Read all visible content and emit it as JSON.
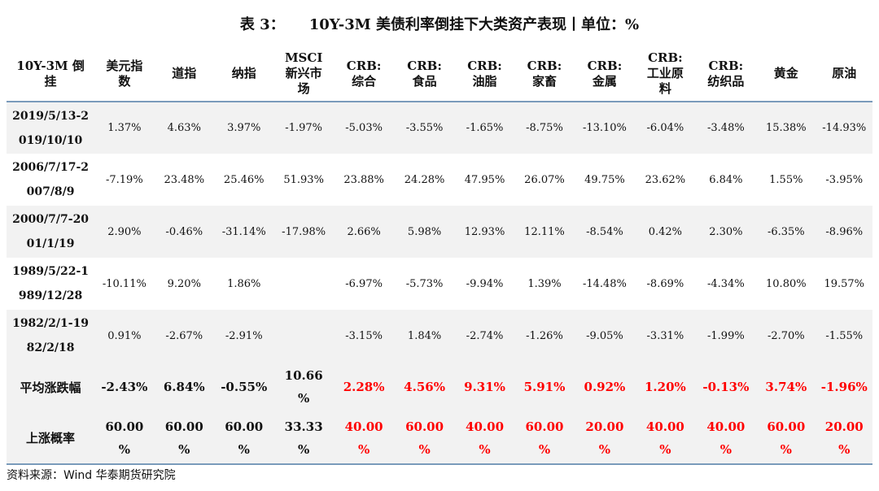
{
  "title": {
    "label": "表 3：",
    "text": "10Y-3M 美债利率倒挂下大类资产表现丨单位：%"
  },
  "headers": [
    [
      "10Y-3M 倒",
      "挂"
    ],
    [
      "美元指",
      "数"
    ],
    [
      "道指"
    ],
    [
      "纳指"
    ],
    [
      "MSCI",
      "新兴市",
      "场"
    ],
    [
      "CRB:",
      "综合"
    ],
    [
      "CRB:",
      "食品"
    ],
    [
      "CRB:",
      "油脂"
    ],
    [
      "CRB:",
      "家畜"
    ],
    [
      "CRB:",
      "金属"
    ],
    [
      "CRB:",
      "工业原",
      "料"
    ],
    [
      "CRB:",
      "纺织品"
    ],
    [
      "黄金"
    ],
    [
      "原油"
    ]
  ],
  "rows": [
    {
      "period": [
        "2019/5/13-2",
        "019/10/10"
      ],
      "values": [
        "1.37%",
        "4.63%",
        "3.97%",
        "-1.97%",
        "-5.03%",
        "-3.55%",
        "-1.65%",
        "-8.75%",
        "-13.10%",
        "-6.04%",
        "-3.48%",
        "15.38%",
        "-14.93%"
      ]
    },
    {
      "period": [
        "2006/7/17-2",
        "007/8/9"
      ],
      "values": [
        "-7.19%",
        "23.48%",
        "25.46%",
        "51.93%",
        "23.88%",
        "24.28%",
        "47.95%",
        "26.07%",
        "49.75%",
        "23.62%",
        "6.84%",
        "1.55%",
        "-3.95%"
      ]
    },
    {
      "period": [
        "2000/7/7-20",
        "01/1/19"
      ],
      "values": [
        "2.90%",
        "-0.46%",
        "-31.14%",
        "-17.98%",
        "2.66%",
        "5.98%",
        "12.93%",
        "12.11%",
        "-8.54%",
        "0.42%",
        "2.30%",
        "-6.35%",
        "-8.96%"
      ]
    },
    {
      "period": [
        "1989/5/22-1",
        "989/12/28"
      ],
      "values": [
        "-10.11%",
        "9.20%",
        "1.86%",
        "",
        "-6.97%",
        "-5.73%",
        "-9.94%",
        "1.39%",
        "-14.48%",
        "-8.69%",
        "-4.34%",
        "10.80%",
        "19.57%"
      ]
    },
    {
      "period": [
        "1982/2/1-19",
        "82/2/18"
      ],
      "values": [
        "0.91%",
        "-2.67%",
        "-2.91%",
        "",
        "-3.15%",
        "1.84%",
        "-2.74%",
        "-1.26%",
        "-9.05%",
        "-3.31%",
        "-1.99%",
        "-2.70%",
        "-1.55%"
      ]
    }
  ],
  "average": {
    "label": "平均涨跌幅",
    "values": [
      [
        "-2.43%"
      ],
      [
        "6.84%"
      ],
      [
        "-0.55%"
      ],
      [
        "10.66",
        "%"
      ],
      [
        "2.28%"
      ],
      [
        "4.56%"
      ],
      [
        "9.31%"
      ],
      [
        "5.91%"
      ],
      [
        "0.92%"
      ],
      [
        "1.20%"
      ],
      [
        "-0.13%"
      ],
      [
        "3.74%"
      ],
      [
        "-1.96%"
      ]
    ]
  },
  "probability": {
    "label": "上涨概率",
    "values": [
      [
        "60.00",
        "%"
      ],
      [
        "60.00",
        "%"
      ],
      [
        "60.00",
        "%"
      ],
      [
        "33.33",
        "%"
      ],
      [
        "40.00",
        "%"
      ],
      [
        "60.00",
        "%"
      ],
      [
        "40.00",
        "%"
      ],
      [
        "60.00",
        "%"
      ],
      [
        "20.00",
        "%"
      ],
      [
        "40.00",
        "%"
      ],
      [
        "40.00",
        "%"
      ],
      [
        "60.00",
        "%"
      ],
      [
        "20.00",
        "%"
      ]
    ]
  },
  "red_from_column": 5,
  "colors": {
    "highlight": "#ff0000",
    "band": "#f2f2f2",
    "rule": "#7a9bbb"
  },
  "source": "资料来源：Wind 华泰期货研究院"
}
